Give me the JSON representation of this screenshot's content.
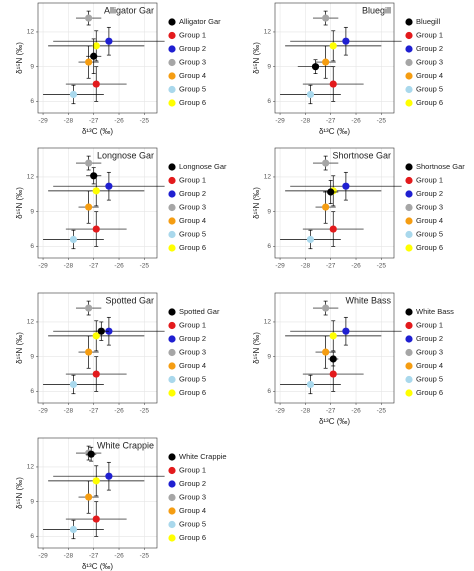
{
  "chart_data": [
    {
      "type": "scatter",
      "title": "Alligator Gar",
      "xlabel": "δ¹³C (‰)",
      "ylabel": "δ¹⁵N (‰)",
      "xlim": [
        -29.2,
        -24.5
      ],
      "ylim": [
        5,
        14.5
      ],
      "xticks": [
        -29,
        -28,
        -27,
        -26,
        -25
      ],
      "yticks": [
        6,
        9,
        12
      ],
      "grid": true,
      "series": [
        {
          "name": "Alligator Gar",
          "color": "#000000",
          "x": [
            -27.0
          ],
          "values": [
            9.9
          ],
          "xerr": [
            0.3
          ],
          "yerr": [
            1.5
          ]
        },
        {
          "name": "Group 1",
          "color": "#e31a1c",
          "x": [
            -26.9
          ],
          "values": [
            7.5
          ],
          "xerr": [
            1.2
          ],
          "yerr": [
            1.5
          ]
        },
        {
          "name": "Group 2",
          "color": "#1f1fd1",
          "x": [
            -26.4
          ],
          "values": [
            11.2
          ],
          "xerr": [
            2.2
          ],
          "yerr": [
            1.2
          ]
        },
        {
          "name": "Group 3",
          "color": "#a6a6a6",
          "x": [
            -27.2
          ],
          "values": [
            13.2
          ],
          "xerr": [
            0.5
          ],
          "yerr": [
            0.6
          ]
        },
        {
          "name": "Group 4",
          "color": "#f59d12",
          "x": [
            -27.2
          ],
          "values": [
            9.4
          ],
          "xerr": [
            0.4
          ],
          "yerr": [
            1.4
          ]
        },
        {
          "name": "Group 5",
          "color": "#a9d8ec",
          "x": [
            -27.8
          ],
          "values": [
            6.6
          ],
          "xerr": [
            1.2
          ],
          "yerr": [
            0.8
          ]
        },
        {
          "name": "Group 6",
          "color": "#ffff00",
          "x": [
            -26.9
          ],
          "values": [
            10.8
          ],
          "xerr": [
            1.9
          ],
          "yerr": [
            1.3
          ]
        }
      ]
    },
    {
      "type": "scatter",
      "title": "Bluegill",
      "xlabel": "δ¹³C (‰)",
      "ylabel": "δ¹⁵N (‰)",
      "xlim": [
        -29.2,
        -24.5
      ],
      "ylim": [
        5,
        14.5
      ],
      "xticks": [
        -29,
        -28,
        -27,
        -26,
        -25
      ],
      "yticks": [
        6,
        9,
        12
      ],
      "grid": true,
      "series": [
        {
          "name": "Bluegill",
          "color": "#000000",
          "x": [
            -27.6
          ],
          "values": [
            9.0
          ],
          "xerr": [
            0.7
          ],
          "yerr": [
            0.6
          ]
        },
        {
          "name": "Group 1",
          "color": "#e31a1c",
          "x": [
            -26.9
          ],
          "values": [
            7.5
          ],
          "xerr": [
            1.2
          ],
          "yerr": [
            1.5
          ]
        },
        {
          "name": "Group 2",
          "color": "#1f1fd1",
          "x": [
            -26.4
          ],
          "values": [
            11.2
          ],
          "xerr": [
            2.2
          ],
          "yerr": [
            1.2
          ]
        },
        {
          "name": "Group 3",
          "color": "#a6a6a6",
          "x": [
            -27.2
          ],
          "values": [
            13.2
          ],
          "xerr": [
            0.5
          ],
          "yerr": [
            0.6
          ]
        },
        {
          "name": "Group 4",
          "color": "#f59d12",
          "x": [
            -27.2
          ],
          "values": [
            9.4
          ],
          "xerr": [
            0.4
          ],
          "yerr": [
            1.4
          ]
        },
        {
          "name": "Group 5",
          "color": "#a9d8ec",
          "x": [
            -27.8
          ],
          "values": [
            6.6
          ],
          "xerr": [
            1.2
          ],
          "yerr": [
            0.8
          ]
        },
        {
          "name": "Group 6",
          "color": "#ffff00",
          "x": [
            -26.9
          ],
          "values": [
            10.8
          ],
          "xerr": [
            1.9
          ],
          "yerr": [
            1.3
          ]
        }
      ]
    },
    {
      "type": "scatter",
      "title": "Longnose Gar",
      "ylabel": "δ¹⁵N (‰)",
      "xlim": [
        -29.2,
        -24.5
      ],
      "ylim": [
        5,
        14.5
      ],
      "xticks": [
        -29,
        -28,
        -27,
        -26,
        -25
      ],
      "yticks": [
        6,
        9,
        12
      ],
      "grid": true,
      "series": [
        {
          "name": "Longnose Gar",
          "color": "#000000",
          "x": [
            -27.0
          ],
          "values": [
            12.1
          ],
          "xerr": [
            0.3
          ],
          "yerr": [
            0.7
          ]
        },
        {
          "name": "Group 1",
          "color": "#e31a1c",
          "x": [
            -26.9
          ],
          "values": [
            7.5
          ],
          "xerr": [
            1.2
          ],
          "yerr": [
            1.5
          ]
        },
        {
          "name": "Group 2",
          "color": "#1f1fd1",
          "x": [
            -26.4
          ],
          "values": [
            11.2
          ],
          "xerr": [
            2.2
          ],
          "yerr": [
            1.2
          ]
        },
        {
          "name": "Group 3",
          "color": "#a6a6a6",
          "x": [
            -27.2
          ],
          "values": [
            13.2
          ],
          "xerr": [
            0.5
          ],
          "yerr": [
            0.6
          ]
        },
        {
          "name": "Group 4",
          "color": "#f59d12",
          "x": [
            -27.2
          ],
          "values": [
            9.4
          ],
          "xerr": [
            0.4
          ],
          "yerr": [
            1.4
          ]
        },
        {
          "name": "Group 5",
          "color": "#a9d8ec",
          "x": [
            -27.8
          ],
          "values": [
            6.6
          ],
          "xerr": [
            1.2
          ],
          "yerr": [
            0.8
          ]
        },
        {
          "name": "Group 6",
          "color": "#ffff00",
          "x": [
            -26.9
          ],
          "values": [
            10.8
          ],
          "xerr": [
            1.9
          ],
          "yerr": [
            1.3
          ]
        }
      ]
    },
    {
      "type": "scatter",
      "title": "Shortnose Gar",
      "ylabel": "δ¹⁵N (‰)",
      "xlim": [
        -29.2,
        -24.5
      ],
      "ylim": [
        5,
        14.5
      ],
      "xticks": [
        -29,
        -28,
        -27,
        -26,
        -25
      ],
      "yticks": [
        6,
        9,
        12
      ],
      "grid": true,
      "series": [
        {
          "name": "Shortnose Gar",
          "color": "#000000",
          "x": [
            -27.0
          ],
          "values": [
            10.7
          ],
          "xerr": [
            0.3
          ],
          "yerr": [
            1.0
          ]
        },
        {
          "name": "Group 1",
          "color": "#e31a1c",
          "x": [
            -26.9
          ],
          "values": [
            7.5
          ],
          "xerr": [
            1.2
          ],
          "yerr": [
            1.5
          ]
        },
        {
          "name": "Group 2",
          "color": "#1f1fd1",
          "x": [
            -26.4
          ],
          "values": [
            11.2
          ],
          "xerr": [
            2.2
          ],
          "yerr": [
            1.2
          ]
        },
        {
          "name": "Group 3",
          "color": "#a6a6a6",
          "x": [
            -27.2
          ],
          "values": [
            13.2
          ],
          "xerr": [
            0.5
          ],
          "yerr": [
            0.6
          ]
        },
        {
          "name": "Group 4",
          "color": "#f59d12",
          "x": [
            -27.2
          ],
          "values": [
            9.4
          ],
          "xerr": [
            0.4
          ],
          "yerr": [
            1.4
          ]
        },
        {
          "name": "Group 5",
          "color": "#a9d8ec",
          "x": [
            -27.8
          ],
          "values": [
            6.6
          ],
          "xerr": [
            1.2
          ],
          "yerr": [
            0.8
          ]
        },
        {
          "name": "Group 6",
          "color": "#ffff00",
          "x": [
            -26.9
          ],
          "values": [
            10.8
          ],
          "xerr": [
            1.9
          ],
          "yerr": [
            1.3
          ]
        }
      ]
    },
    {
      "type": "scatter",
      "title": "Spotted Gar",
      "ylabel": "δ¹⁵N (‰)",
      "xlim": [
        -29.2,
        -24.5
      ],
      "ylim": [
        5,
        14.5
      ],
      "xticks": [
        -29,
        -28,
        -27,
        -26,
        -25
      ],
      "yticks": [
        6,
        9,
        12
      ],
      "grid": true,
      "series": [
        {
          "name": "Spotted Gar",
          "color": "#000000",
          "x": [
            -26.7
          ],
          "values": [
            11.2
          ],
          "xerr": [
            0.3
          ],
          "yerr": [
            0.8
          ]
        },
        {
          "name": "Group 1",
          "color": "#e31a1c",
          "x": [
            -26.9
          ],
          "values": [
            7.5
          ],
          "xerr": [
            1.2
          ],
          "yerr": [
            1.5
          ]
        },
        {
          "name": "Group 2",
          "color": "#1f1fd1",
          "x": [
            -26.4
          ],
          "values": [
            11.2
          ],
          "xerr": [
            2.2
          ],
          "yerr": [
            1.2
          ]
        },
        {
          "name": "Group 3",
          "color": "#a6a6a6",
          "x": [
            -27.2
          ],
          "values": [
            13.2
          ],
          "xerr": [
            0.5
          ],
          "yerr": [
            0.6
          ]
        },
        {
          "name": "Group 4",
          "color": "#f59d12",
          "x": [
            -27.2
          ],
          "values": [
            9.4
          ],
          "xerr": [
            0.4
          ],
          "yerr": [
            1.4
          ]
        },
        {
          "name": "Group 5",
          "color": "#a9d8ec",
          "x": [
            -27.8
          ],
          "values": [
            6.6
          ],
          "xerr": [
            1.2
          ],
          "yerr": [
            0.8
          ]
        },
        {
          "name": "Group 6",
          "color": "#ffff00",
          "x": [
            -26.9
          ],
          "values": [
            10.8
          ],
          "xerr": [
            1.9
          ],
          "yerr": [
            1.3
          ]
        }
      ]
    },
    {
      "type": "scatter",
      "title": "White Bass",
      "xlabel": "δ¹³C (‰)",
      "ylabel": "δ¹⁵N (‰)",
      "xlim": [
        -29.2,
        -24.5
      ],
      "ylim": [
        5,
        14.5
      ],
      "xticks": [
        -29,
        -28,
        -27,
        -26,
        -25
      ],
      "yticks": [
        6,
        9,
        12
      ],
      "grid": true,
      "series": [
        {
          "name": "White Bass",
          "color": "#000000",
          "x": [
            -26.9
          ],
          "values": [
            8.8
          ],
          "xerr": [
            0.2
          ],
          "yerr": [
            0.6
          ]
        },
        {
          "name": "Group 1",
          "color": "#e31a1c",
          "x": [
            -26.9
          ],
          "values": [
            7.5
          ],
          "xerr": [
            1.2
          ],
          "yerr": [
            1.5
          ]
        },
        {
          "name": "Group 2",
          "color": "#1f1fd1",
          "x": [
            -26.4
          ],
          "values": [
            11.2
          ],
          "xerr": [
            2.2
          ],
          "yerr": [
            1.2
          ]
        },
        {
          "name": "Group 3",
          "color": "#a6a6a6",
          "x": [
            -27.2
          ],
          "values": [
            13.2
          ],
          "xerr": [
            0.5
          ],
          "yerr": [
            0.6
          ]
        },
        {
          "name": "Group 4",
          "color": "#f59d12",
          "x": [
            -27.2
          ],
          "values": [
            9.4
          ],
          "xerr": [
            0.4
          ],
          "yerr": [
            1.4
          ]
        },
        {
          "name": "Group 5",
          "color": "#a9d8ec",
          "x": [
            -27.8
          ],
          "values": [
            6.6
          ],
          "xerr": [
            1.2
          ],
          "yerr": [
            0.8
          ]
        },
        {
          "name": "Group 6",
          "color": "#ffff00",
          "x": [
            -26.9
          ],
          "values": [
            10.8
          ],
          "xerr": [
            1.9
          ],
          "yerr": [
            1.3
          ]
        }
      ]
    },
    {
      "type": "scatter",
      "title": "White Crappie",
      "xlabel": "δ¹³C (‰)",
      "ylabel": "δ¹⁵N (‰)",
      "xlim": [
        -29.2,
        -24.5
      ],
      "ylim": [
        5,
        14.5
      ],
      "xticks": [
        -29,
        -28,
        -27,
        -26,
        -25
      ],
      "yticks": [
        6,
        9,
        12
      ],
      "grid": true,
      "series": [
        {
          "name": "White Crappie",
          "color": "#000000",
          "x": [
            -27.1
          ],
          "values": [
            13.1
          ],
          "xerr": [
            0.2
          ],
          "yerr": [
            0.6
          ]
        },
        {
          "name": "Group 1",
          "color": "#e31a1c",
          "x": [
            -26.9
          ],
          "values": [
            7.5
          ],
          "xerr": [
            1.2
          ],
          "yerr": [
            1.5
          ]
        },
        {
          "name": "Group 2",
          "color": "#1f1fd1",
          "x": [
            -26.4
          ],
          "values": [
            11.2
          ],
          "xerr": [
            2.2
          ],
          "yerr": [
            1.2
          ]
        },
        {
          "name": "Group 3",
          "color": "#a6a6a6",
          "x": [
            -27.2
          ],
          "values": [
            13.2
          ],
          "xerr": [
            0.5
          ],
          "yerr": [
            0.6
          ]
        },
        {
          "name": "Group 4",
          "color": "#f59d12",
          "x": [
            -27.2
          ],
          "values": [
            9.4
          ],
          "xerr": [
            0.4
          ],
          "yerr": [
            1.4
          ]
        },
        {
          "name": "Group 5",
          "color": "#a9d8ec",
          "x": [
            -27.8
          ],
          "values": [
            6.6
          ],
          "xerr": [
            1.2
          ],
          "yerr": [
            0.8
          ]
        },
        {
          "name": "Group 6",
          "color": "#ffff00",
          "x": [
            -26.9
          ],
          "values": [
            10.8
          ],
          "xerr": [
            1.9
          ],
          "yerr": [
            1.3
          ]
        }
      ]
    }
  ]
}
